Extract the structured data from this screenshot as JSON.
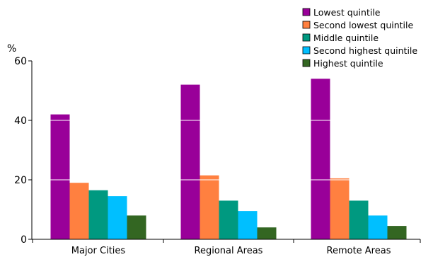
{
  "chart_data": {
    "type": "bar",
    "title": "",
    "xlabel": "",
    "ylabel": "%",
    "ylim": [
      0,
      60
    ],
    "yticks": [
      0,
      20,
      40,
      60
    ],
    "categories": [
      "Major Cities",
      "Regional Areas",
      "Remote Areas"
    ],
    "series": [
      {
        "name": "Lowest quintile",
        "color": "#990099",
        "values": [
          42,
          52,
          54
        ]
      },
      {
        "name": "Second lowest quintile",
        "color": "#ff8040",
        "values": [
          19,
          21.5,
          20.5
        ]
      },
      {
        "name": "Middle quintile",
        "color": "#009980",
        "values": [
          16.5,
          13,
          13
        ]
      },
      {
        "name": "Second highest quintile",
        "color": "#00bfff",
        "values": [
          14.5,
          9.5,
          8
        ]
      },
      {
        "name": "Highest quintile",
        "color": "#336622",
        "values": [
          8,
          4,
          4.5
        ]
      }
    ],
    "grid": "white lines across bars at major ticks",
    "legend": "top-right"
  }
}
